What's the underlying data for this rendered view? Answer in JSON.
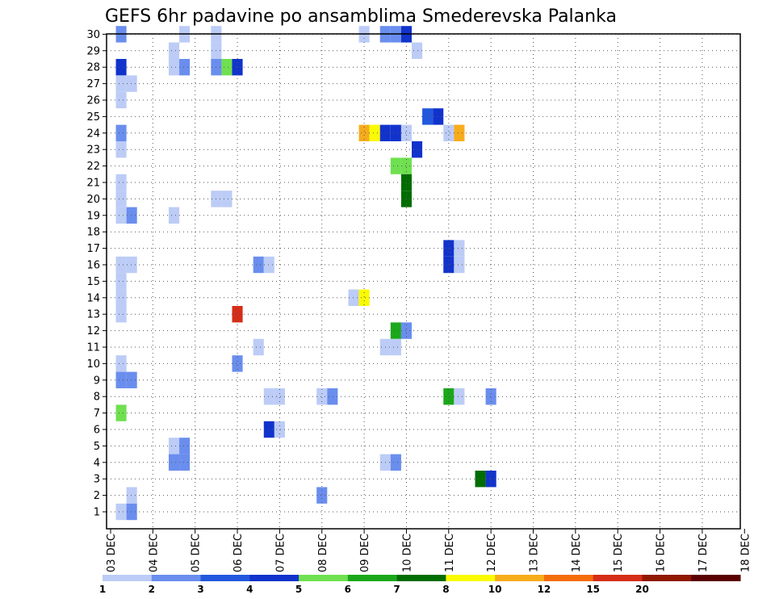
{
  "chart_data": {
    "type": "heatmap",
    "title": "GEFS 6hr padavine po ansamblima Smederevska Palanka",
    "x_labels": [
      "03 DEC",
      "04 DEC",
      "05 DEC",
      "06 DEC",
      "07 DEC",
      "08 DEC",
      "09 DEC",
      "10 DEC",
      "11 DEC",
      "12 DEC",
      "13 DEC",
      "14 DEC",
      "15 DEC",
      "16 DEC",
      "17 DEC",
      "18 DEC"
    ],
    "y_range": [
      1,
      30
    ],
    "grid": true,
    "colorbar": {
      "labels": [
        "1",
        "2",
        "3",
        "4",
        "5",
        "6",
        "7",
        "8",
        "10",
        "12",
        "15",
        "20"
      ],
      "colors": [
        "#bcccf6",
        "#6a8eee",
        "#2258dd",
        "#1133cc",
        "#6fe050",
        "#1aa81a",
        "#006d00",
        "#fafa00",
        "#f7ac1c",
        "#f46d0a",
        "#d62d18",
        "#911800",
        "#5a0000"
      ]
    },
    "cells": [
      {
        "step": 1,
        "member": 30,
        "level": 2
      },
      {
        "step": 7,
        "member": 30,
        "level": 1
      },
      {
        "step": 10,
        "member": 30,
        "level": 1
      },
      {
        "step": 24,
        "member": 30,
        "level": 1
      },
      {
        "step": 26,
        "member": 30,
        "level": 2
      },
      {
        "step": 27,
        "member": 30,
        "level": 2
      },
      {
        "step": 28,
        "member": 30,
        "level": 4
      },
      {
        "step": 6,
        "member": 29,
        "level": 1
      },
      {
        "step": 10,
        "member": 29,
        "level": 1
      },
      {
        "step": 29,
        "member": 29,
        "level": 1
      },
      {
        "step": 1,
        "member": 28,
        "level": 4
      },
      {
        "step": 6,
        "member": 28,
        "level": 1
      },
      {
        "step": 7,
        "member": 28,
        "level": 2
      },
      {
        "step": 10,
        "member": 28,
        "level": 2
      },
      {
        "step": 11,
        "member": 28,
        "level": 5
      },
      {
        "step": 12,
        "member": 28,
        "level": 4
      },
      {
        "step": 1,
        "member": 27,
        "level": 1
      },
      {
        "step": 2,
        "member": 27,
        "level": 1
      },
      {
        "step": 1,
        "member": 26,
        "level": 1
      },
      {
        "step": 30,
        "member": 25,
        "level": 3
      },
      {
        "step": 31,
        "member": 25,
        "level": 4
      },
      {
        "step": 1,
        "member": 24,
        "level": 2
      },
      {
        "step": 24,
        "member": 24,
        "level": 9
      },
      {
        "step": 25,
        "member": 24,
        "level": 8
      },
      {
        "step": 26,
        "member": 24,
        "level": 4
      },
      {
        "step": 27,
        "member": 24,
        "level": 4
      },
      {
        "step": 28,
        "member": 24,
        "level": 1
      },
      {
        "step": 32,
        "member": 24,
        "level": 1
      },
      {
        "step": 33,
        "member": 24,
        "level": 9
      },
      {
        "step": 1,
        "member": 23,
        "level": 1
      },
      {
        "step": 29,
        "member": 23,
        "level": 4
      },
      {
        "step": 27,
        "member": 22,
        "level": 5
      },
      {
        "step": 28,
        "member": 22,
        "level": 5
      },
      {
        "step": 1,
        "member": 21,
        "level": 1
      },
      {
        "step": 28,
        "member": 21,
        "level": 7
      },
      {
        "step": 1,
        "member": 20,
        "level": 1
      },
      {
        "step": 10,
        "member": 20,
        "level": 1
      },
      {
        "step": 11,
        "member": 20,
        "level": 1
      },
      {
        "step": 28,
        "member": 20,
        "level": 7
      },
      {
        "step": 1,
        "member": 19,
        "level": 1
      },
      {
        "step": 2,
        "member": 19,
        "level": 2
      },
      {
        "step": 6,
        "member": 19,
        "level": 1
      },
      {
        "step": 32,
        "member": 17,
        "level": 4
      },
      {
        "step": 33,
        "member": 17,
        "level": 1
      },
      {
        "step": 1,
        "member": 16,
        "level": 1
      },
      {
        "step": 2,
        "member": 16,
        "level": 1
      },
      {
        "step": 14,
        "member": 16,
        "level": 2
      },
      {
        "step": 15,
        "member": 16,
        "level": 1
      },
      {
        "step": 32,
        "member": 16,
        "level": 4
      },
      {
        "step": 33,
        "member": 16,
        "level": 1
      },
      {
        "step": 1,
        "member": 15,
        "level": 1
      },
      {
        "step": 1,
        "member": 14,
        "level": 1
      },
      {
        "step": 23,
        "member": 14,
        "level": 1
      },
      {
        "step": 24,
        "member": 14,
        "level": 8
      },
      {
        "step": 1,
        "member": 13,
        "level": 1
      },
      {
        "step": 12,
        "member": 13,
        "level": 11
      },
      {
        "step": 27,
        "member": 12,
        "level": 6
      },
      {
        "step": 28,
        "member": 12,
        "level": 2
      },
      {
        "step": 14,
        "member": 11,
        "level": 1
      },
      {
        "step": 27,
        "member": 11,
        "level": 1
      },
      {
        "step": 26,
        "member": 11,
        "level": 1
      },
      {
        "step": 1,
        "member": 10,
        "level": 1
      },
      {
        "step": 12,
        "member": 10,
        "level": 2
      },
      {
        "step": 1,
        "member": 9,
        "level": 2
      },
      {
        "step": 2,
        "member": 9,
        "level": 2
      },
      {
        "step": 15,
        "member": 8,
        "level": 1
      },
      {
        "step": 16,
        "member": 8,
        "level": 1
      },
      {
        "step": 20,
        "member": 8,
        "level": 1
      },
      {
        "step": 21,
        "member": 8,
        "level": 2
      },
      {
        "step": 32,
        "member": 8,
        "level": 6
      },
      {
        "step": 33,
        "member": 8,
        "level": 1
      },
      {
        "step": 36,
        "member": 8,
        "level": 2
      },
      {
        "step": 1,
        "member": 7,
        "level": 5
      },
      {
        "step": 15,
        "member": 6,
        "level": 4
      },
      {
        "step": 16,
        "member": 6,
        "level": 1
      },
      {
        "step": 6,
        "member": 5,
        "level": 1
      },
      {
        "step": 7,
        "member": 5,
        "level": 2
      },
      {
        "step": 6,
        "member": 4,
        "level": 2
      },
      {
        "step": 7,
        "member": 4,
        "level": 2
      },
      {
        "step": 26,
        "member": 4,
        "level": 1
      },
      {
        "step": 27,
        "member": 4,
        "level": 2
      },
      {
        "step": 35,
        "member": 3,
        "level": 7
      },
      {
        "step": 36,
        "member": 3,
        "level": 4
      },
      {
        "step": 2,
        "member": 2,
        "level": 1
      },
      {
        "step": 20,
        "member": 2,
        "level": 2
      },
      {
        "step": 1,
        "member": 1,
        "level": 1
      },
      {
        "step": 2,
        "member": 1,
        "level": 2
      }
    ]
  }
}
